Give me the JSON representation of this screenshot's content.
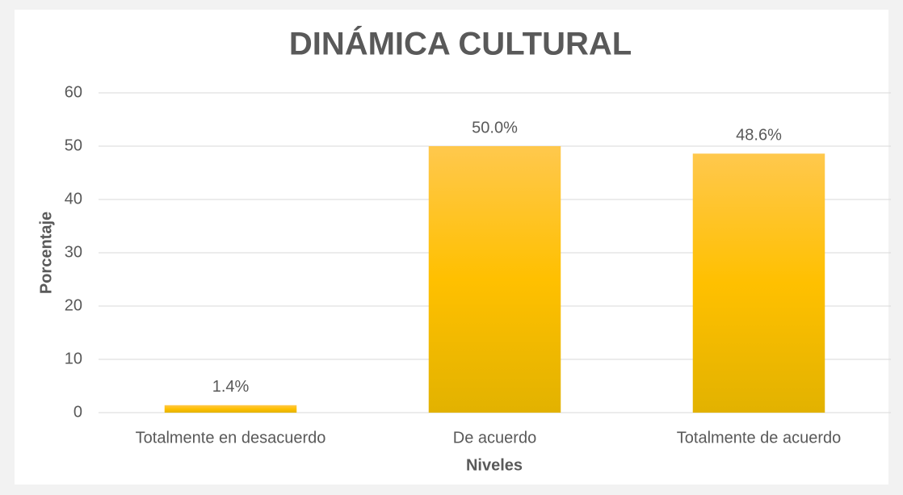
{
  "chart_data": {
    "type": "bar",
    "title": "DINÁMICA CULTURAL",
    "categories": [
      "Totalmente en desacuerdo",
      "De acuerdo",
      "Totalmente de acuerdo"
    ],
    "values": [
      1.4,
      50.0,
      48.6
    ],
    "value_labels": [
      "1.4%",
      "50.0%",
      "48.6%"
    ],
    "color": "#ffc000",
    "x_label": "Niveles",
    "y_label": "Porcentaje",
    "ylim": [
      0,
      60
    ],
    "yticks": [
      0,
      10,
      20,
      30,
      40,
      50,
      60
    ],
    "grid": true
  }
}
